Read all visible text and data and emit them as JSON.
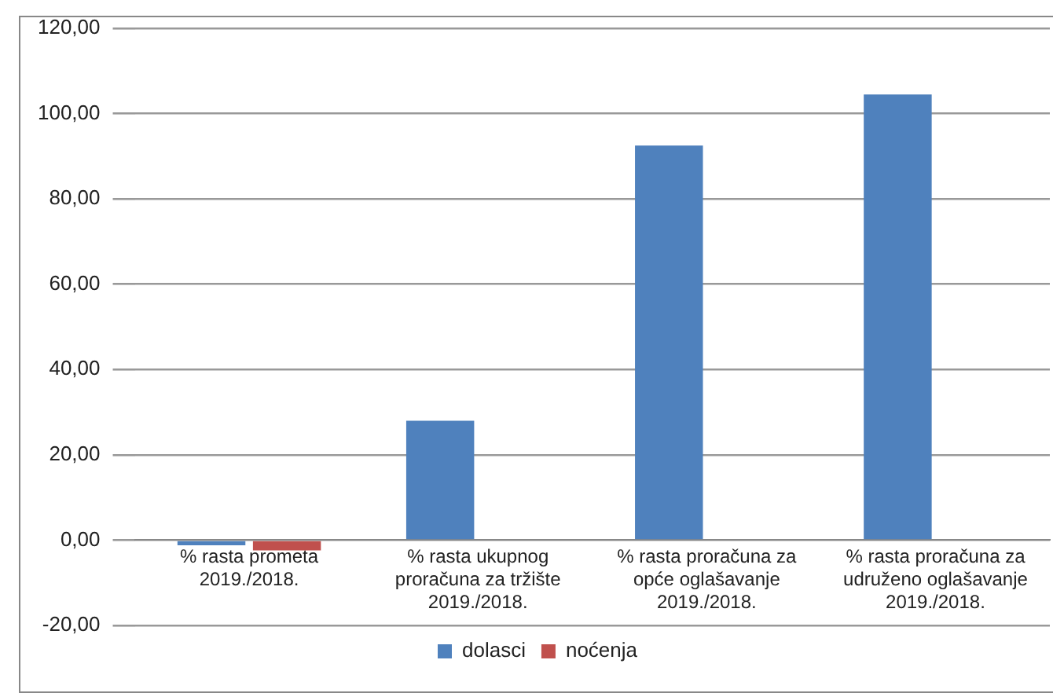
{
  "chart_data": {
    "type": "bar",
    "categories": [
      "% rasta prometa 2019./2018.",
      "% rasta ukupnog proračuna za tržište 2019./2018.",
      "% rasta proračuna za opće oglašavanje 2019./2018.",
      "% rasta proračuna za udruženo oglašavanje 2019./2018."
    ],
    "series": [
      {
        "name": "dolasci",
        "color": "#4f81bd",
        "values": [
          -1.2,
          28,
          92.5,
          104.5
        ]
      },
      {
        "name": "noćenja",
        "color": "#c0504d",
        "values": [
          -2.4,
          null,
          null,
          null
        ]
      }
    ],
    "ylim": [
      -20,
      120
    ],
    "yticks": [
      {
        "value": -20,
        "label": "-20,00"
      },
      {
        "value": 0,
        "label": "0,00"
      },
      {
        "value": 20,
        "label": "20,00"
      },
      {
        "value": 40,
        "label": "40,00"
      },
      {
        "value": 60,
        "label": "60,00"
      },
      {
        "value": 80,
        "label": "80,00"
      },
      {
        "value": 100,
        "label": "100,00"
      },
      {
        "value": 120,
        "label": "120,00"
      }
    ],
    "grid": "y",
    "legend": "bottom"
  }
}
